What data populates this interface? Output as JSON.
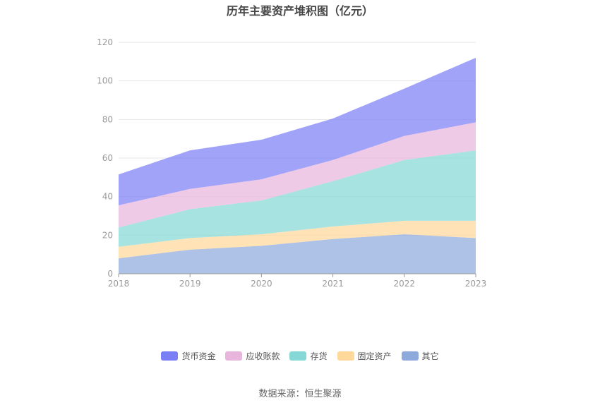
{
  "chart_data": {
    "type": "area",
    "stacked": true,
    "title": "历年主要资产堆积图（亿元）",
    "x": [
      "2018",
      "2019",
      "2020",
      "2021",
      "2022",
      "2023"
    ],
    "ylim": [
      0,
      120
    ],
    "yticks": [
      0,
      20,
      40,
      60,
      80,
      100,
      120
    ],
    "grid": true,
    "legend_position": "bottom",
    "series": [
      {
        "name": "其它",
        "color": "#8eaadc",
        "values": [
          8.0,
          12.5,
          14.5,
          18.0,
          20.5,
          18.5
        ]
      },
      {
        "name": "固定资产",
        "color": "#ffd89a",
        "values": [
          6.0,
          6.0,
          6.0,
          6.5,
          7.0,
          9.0
        ]
      },
      {
        "name": "存货",
        "color": "#85d8d5",
        "values": [
          10.0,
          15.0,
          17.5,
          23.5,
          31.5,
          36.5
        ]
      },
      {
        "name": "应收账款",
        "color": "#e8b6dd",
        "values": [
          11.5,
          10.5,
          11.0,
          11.0,
          12.5,
          14.5
        ]
      },
      {
        "name": "货币资金",
        "color": "#7b7ff5",
        "values": [
          16.0,
          20.0,
          20.5,
          21.5,
          24.5,
          33.5
        ]
      }
    ],
    "legend_order": [
      "货币资金",
      "应收账款",
      "存货",
      "固定资产",
      "其它"
    ]
  },
  "source_text": "数据来源：恒生聚源"
}
